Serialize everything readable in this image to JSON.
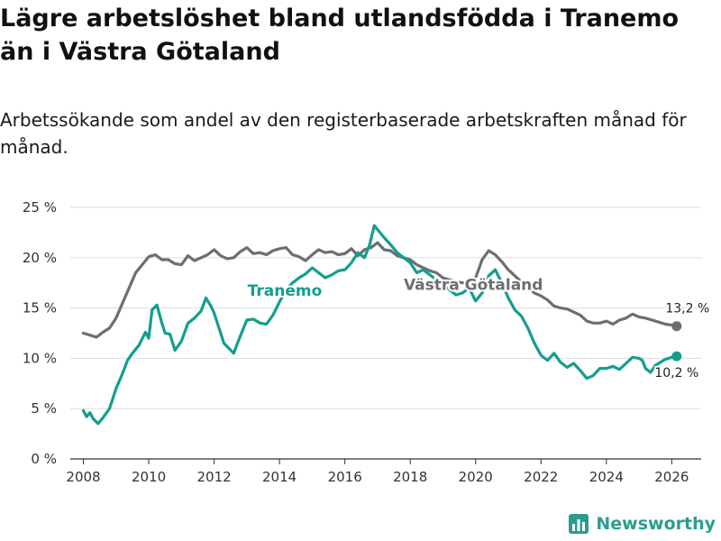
{
  "title": "Lägre arbetslöshet bland utlandsfödda i Tranemo än i Västra Götaland",
  "subtitle": "Arbetssökande som andel av den registerbaserade arbetskraften månad för månad.",
  "brand": {
    "name": "Newsworthy",
    "icon": "bar-chart-logo-icon"
  },
  "colors": {
    "tranemo": "#139e8e",
    "vastra_gotaland": "#6e6e72",
    "grid": "#dddddd",
    "axis": "#333333",
    "brand": "#2a9d8f"
  },
  "chart_data": {
    "type": "line",
    "title": "Lägre arbetslöshet bland utlandsfödda i Tranemo än i Västra Götaland",
    "xlabel": "",
    "ylabel": "",
    "xlim": [
      2007.6,
      2026.9
    ],
    "ylim": [
      0,
      25
    ],
    "grid": true,
    "legend": "inline labels",
    "y_ticks": [
      {
        "value": 0,
        "label": "0 %"
      },
      {
        "value": 5,
        "label": "5 %"
      },
      {
        "value": 10,
        "label": "10 %"
      },
      {
        "value": 15,
        "label": "15 %"
      },
      {
        "value": 20,
        "label": "20 %"
      },
      {
        "value": 25,
        "label": "25 %"
      }
    ],
    "x_ticks": [
      {
        "value": 2008,
        "label": "2008"
      },
      {
        "value": 2010,
        "label": "2010"
      },
      {
        "value": 2012,
        "label": "2012"
      },
      {
        "value": 2014,
        "label": "2014"
      },
      {
        "value": 2016,
        "label": "2016"
      },
      {
        "value": 2018,
        "label": "2018"
      },
      {
        "value": 2020,
        "label": "2020"
      },
      {
        "value": 2022,
        "label": "2022"
      },
      {
        "value": 2024,
        "label": "2024"
      },
      {
        "value": 2026,
        "label": "2026"
      }
    ],
    "series": [
      {
        "name": "Västra Götaland",
        "label": "Västra Götaland",
        "color_key": "vastra_gotaland",
        "end_label": "13,2 %",
        "points": [
          [
            2008.0,
            12.5
          ],
          [
            2008.2,
            12.3
          ],
          [
            2008.4,
            12.1
          ],
          [
            2008.6,
            12.6
          ],
          [
            2008.8,
            13.0
          ],
          [
            2009.0,
            14.0
          ],
          [
            2009.2,
            15.5
          ],
          [
            2009.4,
            17.0
          ],
          [
            2009.6,
            18.5
          ],
          [
            2009.8,
            19.3
          ],
          [
            2010.0,
            20.1
          ],
          [
            2010.2,
            20.3
          ],
          [
            2010.4,
            19.8
          ],
          [
            2010.6,
            19.8
          ],
          [
            2010.8,
            19.4
          ],
          [
            2011.0,
            19.3
          ],
          [
            2011.2,
            20.2
          ],
          [
            2011.4,
            19.7
          ],
          [
            2011.6,
            20.0
          ],
          [
            2011.8,
            20.3
          ],
          [
            2012.0,
            20.8
          ],
          [
            2012.2,
            20.2
          ],
          [
            2012.4,
            19.9
          ],
          [
            2012.6,
            20.0
          ],
          [
            2012.8,
            20.6
          ],
          [
            2013.0,
            21.0
          ],
          [
            2013.2,
            20.4
          ],
          [
            2013.4,
            20.5
          ],
          [
            2013.6,
            20.3
          ],
          [
            2013.8,
            20.7
          ],
          [
            2014.0,
            20.9
          ],
          [
            2014.2,
            21.0
          ],
          [
            2014.4,
            20.3
          ],
          [
            2014.6,
            20.1
          ],
          [
            2014.8,
            19.7
          ],
          [
            2015.0,
            20.3
          ],
          [
            2015.2,
            20.8
          ],
          [
            2015.4,
            20.5
          ],
          [
            2015.6,
            20.6
          ],
          [
            2015.8,
            20.3
          ],
          [
            2016.0,
            20.4
          ],
          [
            2016.2,
            20.9
          ],
          [
            2016.4,
            20.2
          ],
          [
            2016.6,
            20.8
          ],
          [
            2016.8,
            21.0
          ],
          [
            2017.0,
            21.5
          ],
          [
            2017.2,
            20.8
          ],
          [
            2017.4,
            20.7
          ],
          [
            2017.6,
            20.2
          ],
          [
            2017.8,
            20.0
          ],
          [
            2018.0,
            19.8
          ],
          [
            2018.2,
            19.3
          ],
          [
            2018.4,
            19.0
          ],
          [
            2018.6,
            18.7
          ],
          [
            2018.8,
            18.5
          ],
          [
            2019.0,
            18.0
          ],
          [
            2019.2,
            17.8
          ],
          [
            2019.4,
            17.6
          ],
          [
            2019.6,
            17.5
          ],
          [
            2019.8,
            17.5
          ],
          [
            2020.0,
            18.0
          ],
          [
            2020.2,
            19.8
          ],
          [
            2020.4,
            20.7
          ],
          [
            2020.6,
            20.3
          ],
          [
            2020.8,
            19.6
          ],
          [
            2021.0,
            18.8
          ],
          [
            2021.2,
            18.2
          ],
          [
            2021.4,
            17.6
          ],
          [
            2021.6,
            17.0
          ],
          [
            2021.8,
            16.5
          ],
          [
            2022.0,
            16.2
          ],
          [
            2022.2,
            15.8
          ],
          [
            2022.4,
            15.2
          ],
          [
            2022.6,
            15.0
          ],
          [
            2022.8,
            14.9
          ],
          [
            2023.0,
            14.6
          ],
          [
            2023.2,
            14.3
          ],
          [
            2023.4,
            13.7
          ],
          [
            2023.6,
            13.5
          ],
          [
            2023.8,
            13.5
          ],
          [
            2024.0,
            13.7
          ],
          [
            2024.2,
            13.4
          ],
          [
            2024.4,
            13.8
          ],
          [
            2024.6,
            14.0
          ],
          [
            2024.8,
            14.4
          ],
          [
            2025.0,
            14.1
          ],
          [
            2025.2,
            14.0
          ],
          [
            2025.4,
            13.8
          ],
          [
            2025.6,
            13.6
          ],
          [
            2025.8,
            13.4
          ],
          [
            2026.0,
            13.3
          ],
          [
            2026.15,
            13.2
          ]
        ]
      },
      {
        "name": "Tranemo",
        "label": "Tranemo",
        "color_key": "tranemo",
        "end_label": "10,2 %",
        "points": [
          [
            2008.0,
            4.8
          ],
          [
            2008.1,
            4.2
          ],
          [
            2008.2,
            4.6
          ],
          [
            2008.3,
            4.0
          ],
          [
            2008.45,
            3.5
          ],
          [
            2008.6,
            4.1
          ],
          [
            2008.8,
            5.0
          ],
          [
            2009.0,
            7.0
          ],
          [
            2009.2,
            8.5
          ],
          [
            2009.35,
            9.8
          ],
          [
            2009.5,
            10.5
          ],
          [
            2009.7,
            11.3
          ],
          [
            2009.9,
            12.6
          ],
          [
            2010.0,
            12.0
          ],
          [
            2010.1,
            14.8
          ],
          [
            2010.25,
            15.3
          ],
          [
            2010.4,
            13.5
          ],
          [
            2010.5,
            12.5
          ],
          [
            2010.65,
            12.4
          ],
          [
            2010.8,
            10.8
          ],
          [
            2011.0,
            11.7
          ],
          [
            2011.2,
            13.5
          ],
          [
            2011.4,
            14.0
          ],
          [
            2011.6,
            14.7
          ],
          [
            2011.75,
            16.0
          ],
          [
            2011.9,
            15.2
          ],
          [
            2012.0,
            14.5
          ],
          [
            2012.15,
            13.0
          ],
          [
            2012.3,
            11.5
          ],
          [
            2012.45,
            11.0
          ],
          [
            2012.6,
            10.5
          ],
          [
            2012.75,
            11.8
          ],
          [
            2012.9,
            13.0
          ],
          [
            2013.0,
            13.8
          ],
          [
            2013.2,
            13.9
          ],
          [
            2013.4,
            13.5
          ],
          [
            2013.6,
            13.4
          ],
          [
            2013.8,
            14.3
          ],
          [
            2014.0,
            15.6
          ],
          [
            2014.2,
            16.8
          ],
          [
            2014.4,
            17.5
          ],
          [
            2014.6,
            18.0
          ],
          [
            2014.8,
            18.4
          ],
          [
            2015.0,
            19.0
          ],
          [
            2015.2,
            18.5
          ],
          [
            2015.4,
            18.0
          ],
          [
            2015.6,
            18.3
          ],
          [
            2015.8,
            18.7
          ],
          [
            2016.0,
            18.8
          ],
          [
            2016.2,
            19.5
          ],
          [
            2016.4,
            20.5
          ],
          [
            2016.6,
            20.0
          ],
          [
            2016.75,
            21.2
          ],
          [
            2016.9,
            23.2
          ],
          [
            2017.0,
            22.8
          ],
          [
            2017.2,
            22.0
          ],
          [
            2017.4,
            21.3
          ],
          [
            2017.6,
            20.5
          ],
          [
            2017.8,
            20.0
          ],
          [
            2018.0,
            19.5
          ],
          [
            2018.2,
            18.5
          ],
          [
            2018.4,
            18.8
          ],
          [
            2018.6,
            18.3
          ],
          [
            2018.8,
            17.8
          ],
          [
            2019.0,
            17.3
          ],
          [
            2019.2,
            16.8
          ],
          [
            2019.4,
            16.3
          ],
          [
            2019.6,
            16.5
          ],
          [
            2019.8,
            17.0
          ],
          [
            2020.0,
            15.7
          ],
          [
            2020.2,
            16.5
          ],
          [
            2020.4,
            18.2
          ],
          [
            2020.6,
            18.8
          ],
          [
            2020.8,
            17.5
          ],
          [
            2021.0,
            16.0
          ],
          [
            2021.2,
            14.8
          ],
          [
            2021.4,
            14.2
          ],
          [
            2021.6,
            13.0
          ],
          [
            2021.8,
            11.5
          ],
          [
            2022.0,
            10.3
          ],
          [
            2022.2,
            9.8
          ],
          [
            2022.4,
            10.5
          ],
          [
            2022.6,
            9.6
          ],
          [
            2022.8,
            9.1
          ],
          [
            2023.0,
            9.5
          ],
          [
            2023.2,
            8.8
          ],
          [
            2023.4,
            8.0
          ],
          [
            2023.6,
            8.3
          ],
          [
            2023.8,
            9.0
          ],
          [
            2024.0,
            9.0
          ],
          [
            2024.2,
            9.2
          ],
          [
            2024.4,
            8.9
          ],
          [
            2024.6,
            9.5
          ],
          [
            2024.8,
            10.1
          ],
          [
            2025.0,
            10.0
          ],
          [
            2025.1,
            9.8
          ],
          [
            2025.2,
            9.0
          ],
          [
            2025.35,
            8.6
          ],
          [
            2025.5,
            9.3
          ],
          [
            2025.65,
            9.6
          ],
          [
            2025.8,
            9.9
          ],
          [
            2026.0,
            10.1
          ],
          [
            2026.15,
            10.2
          ]
        ]
      }
    ]
  }
}
